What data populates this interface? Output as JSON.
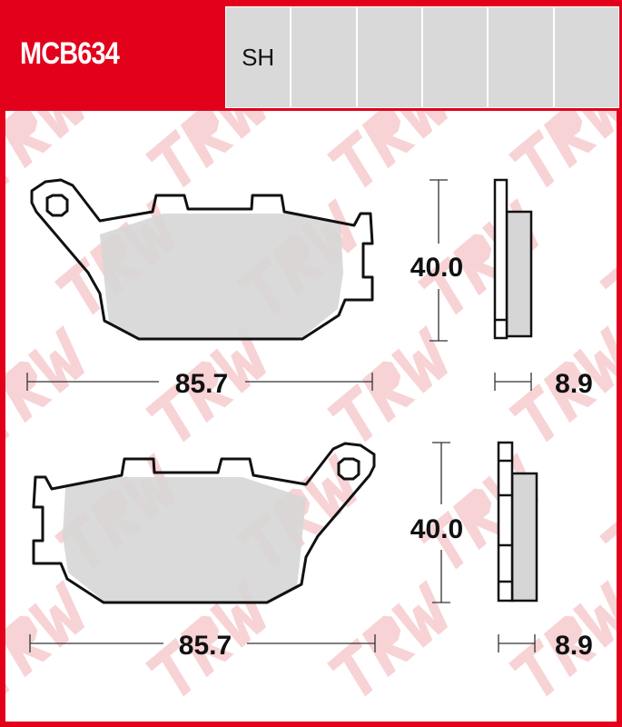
{
  "header": {
    "part_number": "MCB634",
    "compound_cells": [
      "SH",
      "",
      "",
      "",
      "",
      ""
    ]
  },
  "watermark": "TRW",
  "pads": [
    {
      "name": "top-pad",
      "height": "40.0",
      "width": "85.7",
      "thickness": "8.9"
    },
    {
      "name": "bottom-pad",
      "height": "40.0",
      "width": "85.7",
      "thickness": "8.9"
    }
  ],
  "colors": {
    "brand_red": "#e2001a",
    "cell_gray": "#d9d9d9",
    "friction_gray": "#d6d6d6"
  }
}
